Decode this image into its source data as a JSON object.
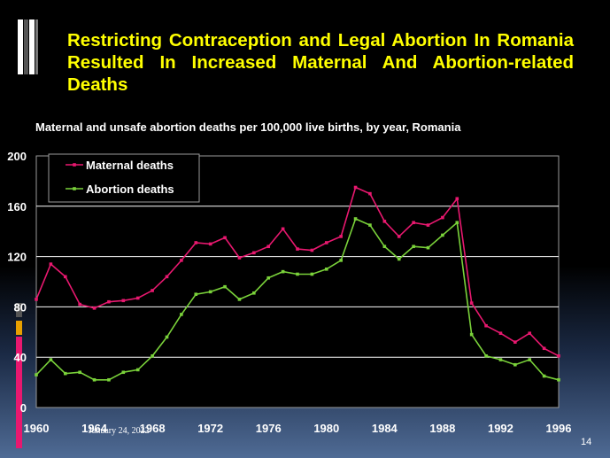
{
  "slide": {
    "title": "Restricting Contraception and Legal Abortion In Romania Resulted In Increased Maternal And Abortion-related Deaths",
    "subtitle": "Maternal and unsafe abortion deaths per 100,000 live births, by year, Romania",
    "date": "January 24, 2022",
    "page_number": "14"
  },
  "colors": {
    "title": "#ffff00",
    "maternal": "#e8186f",
    "abortion": "#7ad23a",
    "grid": "#ffffff"
  },
  "chart_data": {
    "type": "line",
    "x": [
      1960,
      1961,
      1962,
      1963,
      1964,
      1965,
      1966,
      1967,
      1968,
      1969,
      1970,
      1971,
      1972,
      1973,
      1974,
      1975,
      1976,
      1977,
      1978,
      1979,
      1980,
      1981,
      1982,
      1983,
      1984,
      1985,
      1986,
      1987,
      1988,
      1989,
      1990,
      1991,
      1992,
      1993,
      1994,
      1995,
      1996
    ],
    "x_ticks": [
      "1960",
      "1964",
      "1968",
      "1972",
      "1976",
      "1980",
      "1984",
      "1988",
      "1992",
      "1996"
    ],
    "y_ticks": [
      "0",
      "40",
      "80",
      "120",
      "160",
      "200"
    ],
    "ylim": [
      0,
      200
    ],
    "xlim": [
      1960,
      1996
    ],
    "grid": "horizontal",
    "legend": "top-left",
    "series": [
      {
        "name": "Maternal deaths",
        "values": [
          86,
          114,
          104,
          82,
          79,
          84,
          85,
          87,
          93,
          104,
          117,
          131,
          130,
          135,
          119,
          123,
          128,
          142,
          126,
          125,
          131,
          136,
          175,
          170,
          148,
          136,
          147,
          145,
          151,
          166,
          83,
          65,
          59,
          52,
          59,
          47,
          41
        ]
      },
      {
        "name": "Abortion deaths",
        "values": [
          26,
          38,
          27,
          28,
          22,
          22,
          28,
          30,
          41,
          56,
          74,
          90,
          92,
          96,
          86,
          91,
          103,
          108,
          106,
          106,
          110,
          117,
          150,
          145,
          128,
          118,
          128,
          127,
          137,
          147,
          58,
          41,
          38,
          34,
          38,
          25,
          22
        ]
      }
    ]
  }
}
